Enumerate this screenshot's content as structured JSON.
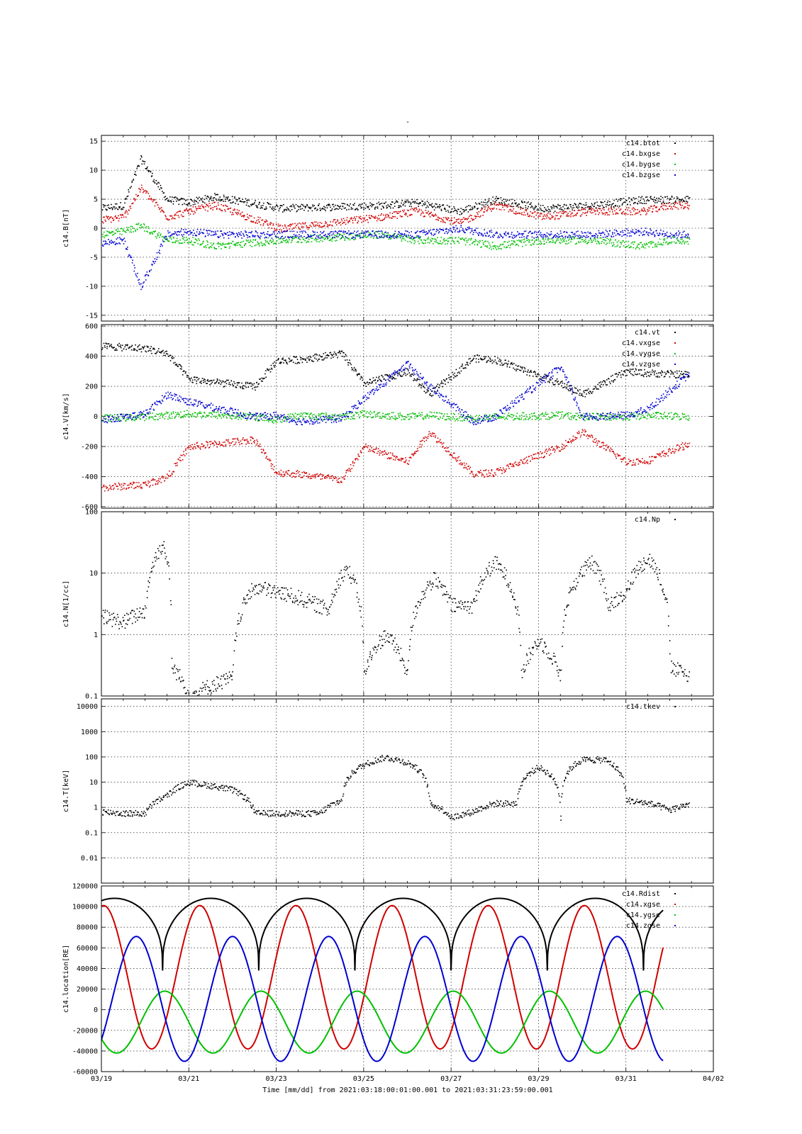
{
  "figure_title": "-",
  "time_caption": "Time [mm/dd]  from 2021:03:18:00:01:00.001  to  2021:03:31:23:59:00.001",
  "chart_data": [
    {
      "type": "scatter",
      "ylabel": "c14.B[nT]",
      "ylim": [
        -16,
        16
      ],
      "yticks": [
        -15,
        -10,
        -5,
        0,
        5,
        10,
        15
      ],
      "xlabel": "",
      "x_range": [
        "03/19",
        "04/02"
      ],
      "x_ticks": [
        "03/19",
        "03/21",
        "03/23",
        "03/25",
        "03/27",
        "03/29",
        "03/31",
        "04/02"
      ],
      "grid": true,
      "legend": "top-right",
      "series": [
        {
          "name": "c14.btot",
          "color": "#000000",
          "days": [
            0.0,
            0.5,
            0.9,
            1.5,
            2.0,
            2.6,
            4.1,
            6.4,
            7.2,
            8.2,
            9.0,
            10.1,
            11.2,
            12.4,
            13.0
          ],
          "values": [
            3.5,
            4.0,
            12,
            5,
            4.5,
            5.5,
            3.5,
            4.0,
            4.5,
            3.0,
            5.0,
            3.5,
            4.0,
            5.0,
            5.0
          ]
        },
        {
          "name": "c14.bxgse",
          "color": "#d00000",
          "days": [
            0.0,
            0.5,
            0.9,
            1.5,
            2.0,
            2.6,
            4.1,
            6.4,
            7.2,
            8.2,
            9.0,
            10.1,
            11.2,
            12.4,
            13.0
          ],
          "values": [
            1.5,
            2.0,
            7,
            2,
            3,
            4,
            0,
            2,
            3,
            1,
            4,
            2,
            3,
            3,
            4
          ]
        },
        {
          "name": "c14.bygse",
          "color": "#00c000",
          "days": [
            0.0,
            0.5,
            0.9,
            1.5,
            2.0,
            2.6,
            4.1,
            6.4,
            7.2,
            8.2,
            9.0,
            10.1,
            11.2,
            12.4,
            13.0
          ],
          "values": [
            -1.0,
            -0.5,
            0.5,
            -2,
            -2,
            -3,
            -2,
            -1,
            -2,
            -2,
            -3,
            -2,
            -2,
            -3,
            -2
          ]
        },
        {
          "name": "c14.bzgse",
          "color": "#0000d0",
          "days": [
            0.0,
            0.5,
            0.9,
            1.5,
            2.0,
            2.6,
            4.1,
            6.4,
            7.2,
            8.2,
            9.0,
            10.1,
            11.2,
            12.4,
            13.0
          ],
          "values": [
            -2.5,
            -2.0,
            -10,
            -1,
            -0.5,
            -1,
            -1,
            -1,
            -1,
            0,
            -1,
            -1,
            -1,
            -0.5,
            -1
          ]
        }
      ]
    },
    {
      "type": "scatter",
      "ylabel": "c14.V[km/s]",
      "ylim": [
        -610,
        610
      ],
      "yticks": [
        -600,
        -400,
        -200,
        0,
        200,
        400,
        600
      ],
      "xlabel": "",
      "x_range": [
        "03/19",
        "04/02"
      ],
      "grid": true,
      "legend": "top-right",
      "series": [
        {
          "name": "c14.vt",
          "color": "#000000",
          "days": [
            0.0,
            1.0,
            1.5,
            2.0,
            3.5,
            4.0,
            4.5,
            5.5,
            6.0,
            7.0,
            7.5,
            8.5,
            9.0,
            10.5,
            11.0,
            12.0,
            12.5,
            13.5,
            14.0
          ],
          "values": [
            470,
            455,
            420,
            250,
            200,
            370,
            380,
            420,
            220,
            300,
            150,
            390,
            380,
            220,
            150,
            300,
            290,
            280,
            160
          ]
        },
        {
          "name": "c14.vxgse",
          "color": "#d00000",
          "days": [
            0.0,
            1.0,
            1.5,
            2.0,
            3.5,
            4.0,
            4.5,
            5.5,
            6.0,
            7.0,
            7.5,
            8.5,
            9.0,
            10.5,
            11.0,
            12.0,
            12.5,
            13.5,
            14.0
          ],
          "values": [
            -470,
            -450,
            -400,
            -200,
            -150,
            -370,
            -380,
            -420,
            -200,
            -300,
            -100,
            -380,
            -370,
            -200,
            -100,
            -300,
            -290,
            -170,
            -150
          ]
        },
        {
          "name": "c14.vygse",
          "color": "#00c000",
          "days": [
            0.0,
            1.0,
            1.5,
            2.0,
            3.5,
            4.0,
            4.5,
            5.5,
            6.0,
            7.0,
            7.5,
            8.5,
            9.0,
            10.5,
            11.0,
            12.0,
            12.5,
            13.5,
            14.0
          ],
          "values": [
            -10,
            0,
            10,
            20,
            0,
            -20,
            10,
            0,
            20,
            0,
            10,
            -10,
            0,
            10,
            0,
            0,
            10,
            0,
            0
          ]
        },
        {
          "name": "c14.vzgse",
          "color": "#0000d0",
          "days": [
            0.0,
            1.0,
            1.5,
            2.0,
            3.5,
            4.0,
            4.5,
            5.5,
            6.0,
            7.0,
            7.5,
            8.5,
            9.0,
            10.5,
            11.0,
            12.0,
            12.5,
            13.5,
            14.0
          ],
          "values": [
            -20,
            20,
            150,
            100,
            0,
            10,
            -30,
            -10,
            120,
            350,
            200,
            -30,
            0,
            330,
            0,
            10,
            50,
            300,
            -100
          ]
        }
      ]
    },
    {
      "type": "scatter",
      "ylabel": "c14.N[1/cc]",
      "yscale": "log",
      "ylim": [
        0.1,
        100
      ],
      "yticks": [
        0.1,
        1,
        10,
        100
      ],
      "xlabel": "",
      "x_range": [
        "03/19",
        "04/02"
      ],
      "grid": true,
      "legend": "top-right",
      "series": [
        {
          "name": "c14.Np",
          "color": "#000000",
          "days": [
            0.0,
            0.5,
            1.0,
            1.4,
            1.6,
            2.0,
            3.0,
            3.5,
            4.5,
            5.2,
            5.6,
            6.0,
            6.5,
            7.0,
            7.6,
            8.0,
            8.5,
            9.0,
            9.6,
            10.0,
            10.5,
            11.2,
            11.6,
            12.0,
            12.5,
            13.0,
            13.5,
            14.0
          ],
          "values": [
            2.0,
            1.6,
            2.5,
            30,
            0.3,
            0.1,
            0.2,
            6.0,
            4.0,
            2.5,
            12,
            0.2,
            1.0,
            0.2,
            8.0,
            3.0,
            3.0,
            15,
            0.2,
            0.8,
            0.2,
            15,
            3.0,
            5.0,
            18,
            0.3,
            0.2,
            3.0
          ]
        }
      ]
    },
    {
      "type": "scatter",
      "ylabel": "c14.T[keV]",
      "yscale": "log",
      "ylim": [
        0.001,
        20000
      ],
      "yticks": [
        0.01,
        0.1,
        1,
        10,
        100,
        1000,
        10000
      ],
      "ytick_labels": [
        "0.01",
        "0.1",
        "1",
        "10",
        "100",
        "1000",
        "10000"
      ],
      "xlabel": "",
      "x_range": [
        "03/19",
        "04/02"
      ],
      "grid": true,
      "legend": "top-right",
      "series": [
        {
          "name": "c14.tkev",
          "color": "#000000",
          "days": [
            0.0,
            0.5,
            1.0,
            1.5,
            2.0,
            3.0,
            3.5,
            4.0,
            5.0,
            5.5,
            6.0,
            6.5,
            7.0,
            7.5,
            8.0,
            8.5,
            9.0,
            9.5,
            10.0,
            10.5,
            11.0,
            11.5,
            12.0,
            12.5,
            13.0,
            13.5,
            14.0
          ],
          "values": [
            0.7,
            0.6,
            0.6,
            3.0,
            10,
            5.0,
            0.6,
            0.6,
            0.6,
            2.0,
            50,
            100,
            60,
            1.5,
            0.4,
            0.7,
            1.5,
            1.5,
            40,
            0.3,
            80,
            80,
            2.0,
            1.5,
            0.8,
            1.5,
            80
          ]
        }
      ]
    },
    {
      "type": "line",
      "ylabel": "c14.location[RE]",
      "ylim": [
        -60000,
        120000
      ],
      "yticks": [
        -60000,
        -40000,
        -20000,
        0,
        20000,
        40000,
        60000,
        80000,
        100000,
        120000
      ],
      "xlabel": "Time [mm/dd]  from 2021:03:18:00:01:00.001  to  2021:03:31:23:59:00.001",
      "x_range": [
        "03/19",
        "04/02"
      ],
      "grid": true,
      "legend": "top-right",
      "orbit_period_days": 2.2,
      "data_end_day": 12.85,
      "series": [
        {
          "name": "c14.Rdist",
          "color": "#000000",
          "max": 108000,
          "min": 38000,
          "phase_day": 2.5
        },
        {
          "name": "c14.xgse",
          "color": "#d00000",
          "max": 101000,
          "min": -38000,
          "phase_day": 2.25
        },
        {
          "name": "c14.ygse",
          "color": "#00c000",
          "max": 18000,
          "min": -42000,
          "phase_day": 1.45
        },
        {
          "name": "c14.zgse",
          "color": "#0000d0",
          "max": 71000,
          "min": -50000,
          "phase_day": 0.8
        }
      ]
    }
  ]
}
